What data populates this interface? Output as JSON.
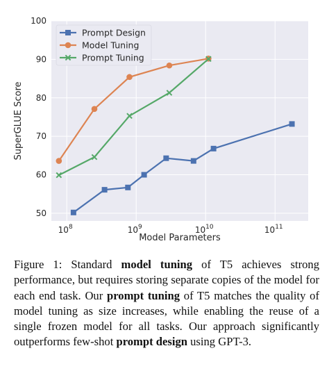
{
  "chart_data": {
    "type": "line",
    "xlabel": "Model Parameters",
    "ylabel": "SuperGLUE Score",
    "xscale": "log",
    "xlim": [
      60000000,
      300000000000
    ],
    "ylim": [
      48,
      100
    ],
    "xticks": [
      {
        "value": 100000000,
        "base": "10",
        "exp": "8"
      },
      {
        "value": 1000000000,
        "base": "10",
        "exp": "9"
      },
      {
        "value": 10000000000,
        "base": "10",
        "exp": "10"
      },
      {
        "value": 100000000000,
        "base": "10",
        "exp": "11"
      }
    ],
    "yticks": [
      50,
      60,
      70,
      80,
      90,
      100
    ],
    "grid": true,
    "background": "#eaeaf2",
    "legend_position": "top-left",
    "series": [
      {
        "name": "Prompt Design",
        "color": "#4c72b0",
        "marker": "square",
        "x": [
          125000000,
          350000000,
          760000000,
          1300000000,
          2700000000,
          6700000000,
          13000000000,
          175000000000
        ],
        "y": [
          50.2,
          56.1,
          56.7,
          60.0,
          64.3,
          63.6,
          66.8,
          73.2
        ]
      },
      {
        "name": "Model Tuning",
        "color": "#dd8452",
        "marker": "circle",
        "x": [
          77000000,
          250000000,
          800000000,
          3000000000,
          11000000000
        ],
        "y": [
          63.6,
          77.1,
          85.4,
          88.4,
          90.2
        ]
      },
      {
        "name": "Prompt Tuning",
        "color": "#55a868",
        "marker": "x",
        "x": [
          77000000,
          250000000,
          800000000,
          3000000000,
          11000000000
        ],
        "y": [
          59.9,
          64.6,
          75.3,
          81.3,
          90.1
        ]
      }
    ]
  },
  "caption": {
    "prefix": "Figure 1: Standard ",
    "b1": "model tuning",
    "t1": " of T5 achieves strong performance, but requires storing separate copies of the model for each end task.  Our ",
    "b2": "prompt tuning",
    "t2": " of T5 matches the quality of model tuning as size increases, while enabling the reuse of a single frozen model for all tasks. Our approach significantly outperforms few-shot ",
    "b3": "prompt design",
    "t3": " using GPT-3."
  }
}
